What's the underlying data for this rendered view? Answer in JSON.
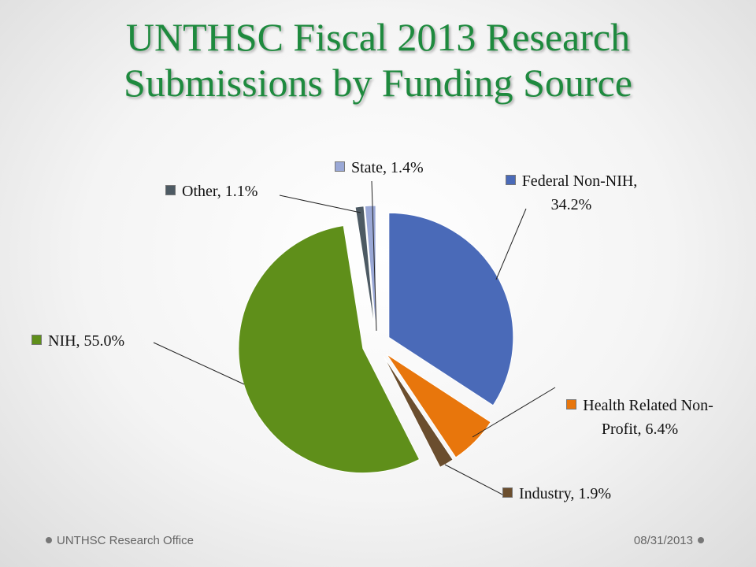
{
  "chart_data": {
    "type": "pie",
    "title": "UNTHSC Fiscal 2013 Research Submissions by Funding Source",
    "values": [
      34.2,
      6.4,
      1.9,
      55.0,
      1.1,
      1.4
    ],
    "value_labels": [
      "Federal Non-NIH, 34.2%",
      "Health Related Non-Profit, 6.4%",
      "Industry, 1.9%",
      "NIH, 55.0%",
      "Other, 1.1%",
      "State, 1.4%"
    ],
    "colors": [
      "#4a6ab8",
      "#e8760c",
      "#6b4e2e",
      "#5f8f1a",
      "#4d5a63",
      "#9aa8d6"
    ]
  },
  "footer": {
    "left": "UNTHSC Research Office",
    "right": "08/31/2013"
  }
}
